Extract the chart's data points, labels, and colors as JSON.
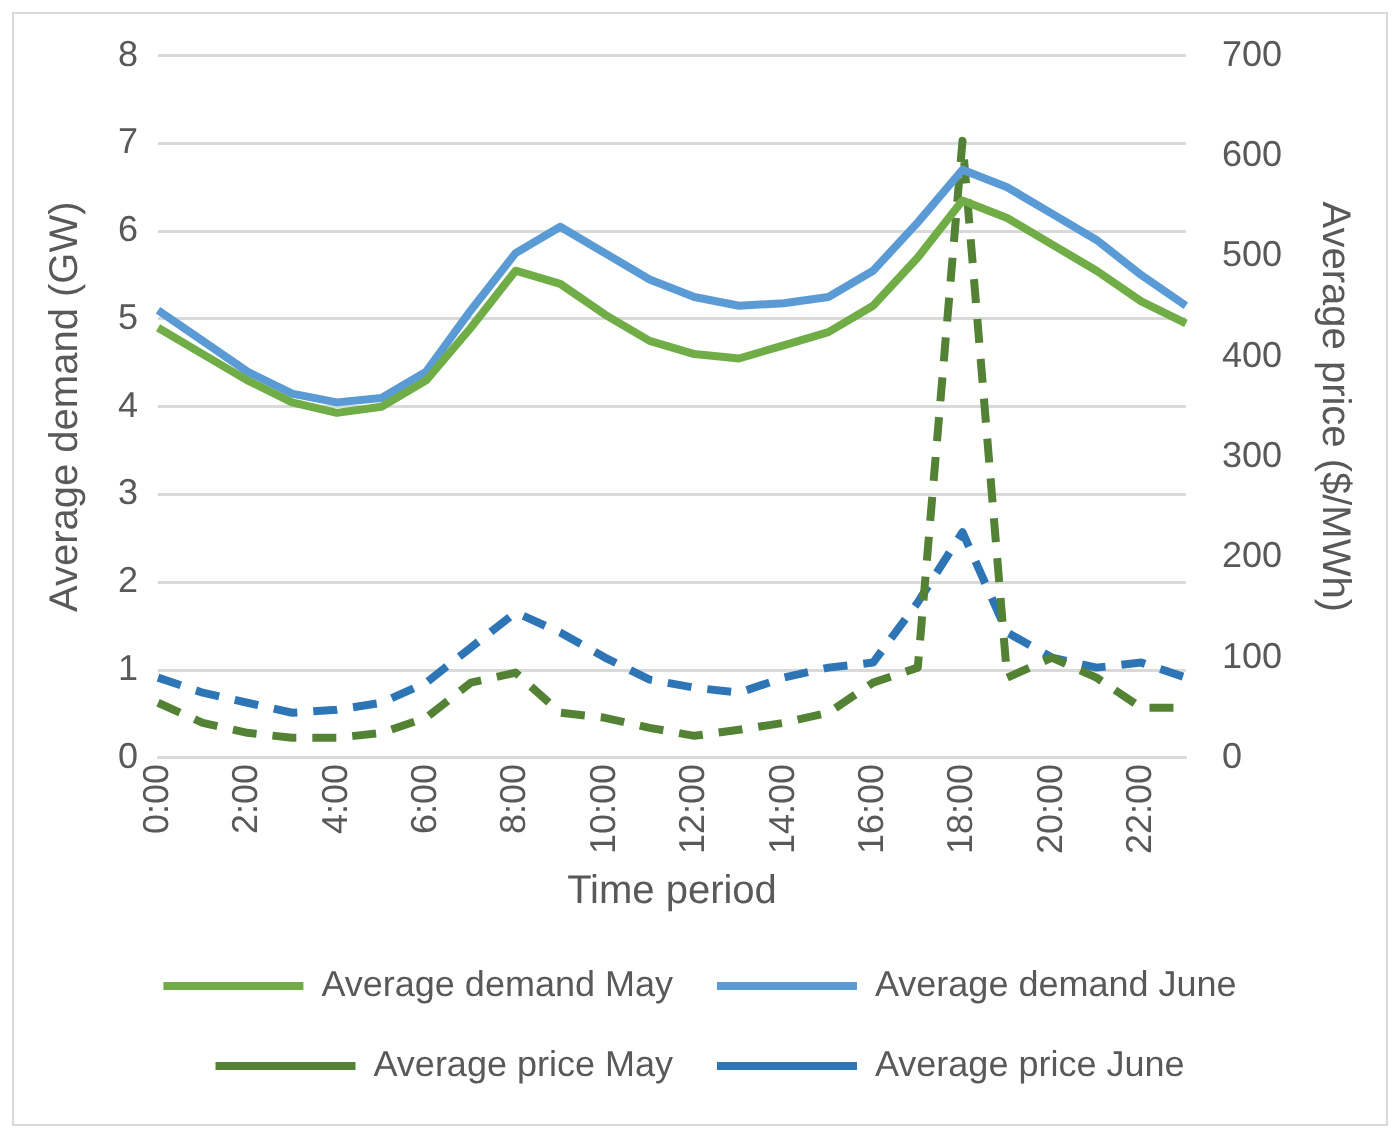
{
  "chart_data": {
    "type": "line",
    "xlabel": "Time period",
    "ylabel": "Average demand (GW)",
    "y2label": "Average price ($/MWh)",
    "categories": [
      "0:00",
      null,
      "2:00",
      null,
      "4:00",
      null,
      "6:00",
      null,
      "8:00",
      null,
      "10:00",
      null,
      "12:00",
      null,
      "14:00",
      null,
      "16:00",
      null,
      "18:00",
      null,
      "20:00",
      null,
      "22:00",
      null
    ],
    "series": [
      {
        "name": "Average demand May",
        "color": "#70ad47",
        "line_style": "solid",
        "values": [
          4.9,
          4.6,
          4.3,
          4.05,
          3.93,
          4.0,
          4.3,
          4.9,
          5.55,
          5.4,
          5.05,
          4.75,
          4.6,
          4.55,
          4.7,
          4.85,
          5.15,
          5.7,
          6.35,
          6.15,
          5.85,
          5.55,
          5.2,
          4.95
        ]
      },
      {
        "name": "Average demand June",
        "color": "#5b9bd5",
        "line_style": "solid",
        "values": [
          5.1,
          4.75,
          4.4,
          4.15,
          4.05,
          4.1,
          4.4,
          5.1,
          5.75,
          6.05,
          5.75,
          5.45,
          5.25,
          5.15,
          5.18,
          5.25,
          5.55,
          6.1,
          6.7,
          6.5,
          6.2,
          5.9,
          5.5,
          5.15
        ]
      },
      {
        "name": "Average price May",
        "color": "#548235",
        "line_style": "dashed",
        "axis": "y2",
        "values": [
          55,
          35,
          25,
          20,
          20,
          25,
          40,
          75,
          85,
          45,
          40,
          30,
          22,
          28,
          35,
          45,
          75,
          90,
          615,
          80,
          100,
          80,
          50,
          50
        ]
      },
      {
        "name": "Average price June",
        "color": "#2e75b6",
        "line_style": "dashed",
        "axis": "y2",
        "values": [
          80,
          65,
          55,
          45,
          48,
          55,
          75,
          110,
          145,
          125,
          100,
          78,
          70,
          65,
          80,
          90,
          95,
          155,
          225,
          125,
          100,
          90,
          95,
          80
        ]
      }
    ],
    "ylim": [
      0,
      8
    ],
    "yticks": [
      0,
      1,
      2,
      3,
      4,
      5,
      6,
      7,
      8
    ],
    "y2lim": [
      0,
      700
    ],
    "y2ticks": [
      0,
      100,
      200,
      300,
      400,
      500,
      600,
      700
    ],
    "grid": "y",
    "legend": "bottom",
    "marker": "none"
  }
}
